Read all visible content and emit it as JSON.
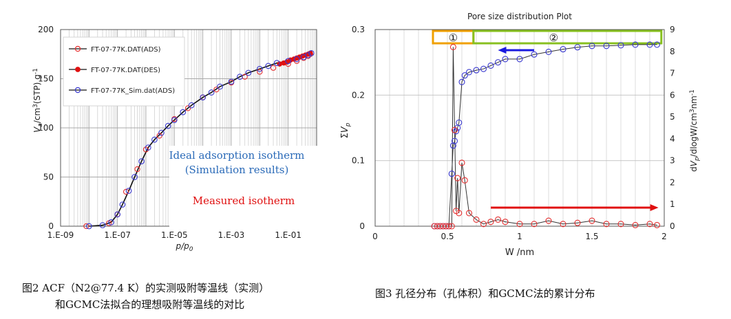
{
  "chart_data": [
    {
      "type": "scatter",
      "title": "",
      "xlabel": "p/p0",
      "ylabel": "Va/cm3(STP) g-1",
      "x_scale": "log",
      "xlim": [
        1e-09,
        1
      ],
      "ylim": [
        0,
        200
      ],
      "xticks": [
        1e-09,
        1e-07,
        1e-05,
        0.001,
        0.1
      ],
      "xtick_labels": [
        "1.E-09",
        "1.E-07",
        "1.E-05",
        "1.E-03",
        "1.E-01"
      ],
      "yticks": [
        0,
        50,
        100,
        150,
        200
      ],
      "ytick_labels": [
        "0",
        "50",
        "100",
        "150",
        "200"
      ],
      "grid": true,
      "legend_position": "top-left",
      "series": [
        {
          "name": "FT-07-77K.DAT(ADS)",
          "marker": "open-circle",
          "color": "#e53030",
          "x": [
            8e-09,
            5e-08,
            1e-07,
            2e-07,
            5e-07,
            1e-06,
            3e-06,
            1e-05,
            3e-05,
            0.0001,
            0.0003,
            0.001,
            0.003,
            0.01,
            0.03,
            0.1,
            0.2,
            0.35,
            0.5,
            0.6
          ],
          "y": [
            0,
            3,
            12,
            35,
            58,
            78,
            92,
            109,
            120,
            131,
            139,
            146,
            152,
            157,
            161,
            165,
            168,
            171,
            173,
            175
          ]
        },
        {
          "name": "FT-07-77K.DAT(DES)",
          "marker": "filled-circle",
          "color": "#e01010",
          "x": [
            0.6,
            0.5,
            0.4,
            0.32,
            0.25,
            0.2,
            0.16,
            0.12,
            0.09,
            0.07,
            0.05
          ],
          "y": [
            176,
            175,
            174,
            173,
            172,
            171,
            170,
            169,
            167,
            166,
            165
          ]
        },
        {
          "name": "FT-07-77K_Sim.dat(ADS)",
          "marker": "open-circle",
          "color": "#3a3ad0",
          "x": [
            1e-08,
            3e-08,
            6e-08,
            1e-07,
            1.5e-07,
            2.5e-07,
            4e-07,
            7e-07,
            1.2e-06,
            2e-06,
            3.5e-06,
            6e-06,
            1e-05,
            2e-05,
            4e-05,
            0.0001,
            0.0002,
            0.0004,
            0.001,
            0.002,
            0.004,
            0.01,
            0.02,
            0.04,
            0.1,
            0.2,
            0.35,
            0.5,
            0.65
          ],
          "y": [
            0,
            1,
            4,
            12,
            22,
            36,
            50,
            66,
            80,
            88,
            95,
            102,
            108,
            116,
            123,
            131,
            136,
            142,
            147,
            152,
            156,
            160,
            163,
            166,
            168,
            170,
            172,
            174,
            176
          ]
        }
      ],
      "annotations": [
        "Ideal adsorption isotherm",
        "(Simulation results)",
        "Measured isotherm"
      ]
    },
    {
      "type": "line",
      "title": "Pore size distribution Plot",
      "xlabel": "W /nm",
      "ylabel": "ΣVp",
      "y2label": "dVp/dlogW/cm3nm-1",
      "xlim": [
        0,
        2
      ],
      "ylim": [
        0,
        0.3
      ],
      "y2lim": [
        0,
        9
      ],
      "xticks": [
        0,
        0.5,
        1,
        1.5,
        2
      ],
      "xtick_labels": [
        "0",
        "0.5",
        "1",
        "1.5",
        "2"
      ],
      "yticks": [
        0,
        0.1,
        0.2,
        0.3
      ],
      "ytick_labels": [
        "0",
        "0.1",
        "0.2",
        "0.3"
      ],
      "y2ticks": [
        0,
        1,
        2,
        3,
        4,
        5,
        6,
        7,
        8,
        9
      ],
      "y2tick_labels": [
        "0",
        "1",
        "2",
        "3",
        "4",
        "5",
        "6",
        "7",
        "8",
        "9"
      ],
      "grid": true,
      "series": [
        {
          "name": "ΣVp (cumulative)",
          "axis": "left",
          "marker": "open-circle",
          "color": "#3a3ad0",
          "x": [
            0.41,
            0.43,
            0.45,
            0.47,
            0.49,
            0.51,
            0.53,
            0.54,
            0.55,
            0.56,
            0.57,
            0.58,
            0.6,
            0.62,
            0.65,
            0.7,
            0.75,
            0.8,
            0.85,
            0.9,
            1.0,
            1.1,
            1.2,
            1.3,
            1.4,
            1.5,
            1.6,
            1.7,
            1.8,
            1.9,
            1.95
          ],
          "y": [
            0,
            0,
            0,
            0,
            0,
            0,
            0.08,
            0.123,
            0.13,
            0.145,
            0.15,
            0.158,
            0.22,
            0.23,
            0.235,
            0.238,
            0.24,
            0.245,
            0.25,
            0.255,
            0.255,
            0.262,
            0.266,
            0.27,
            0.273,
            0.275,
            0.275,
            0.276,
            0.277,
            0.277,
            0.277
          ]
        },
        {
          "name": "dVp/dlogW",
          "axis": "right",
          "marker": "open-circle",
          "color": "#e53030",
          "x": [
            0.41,
            0.43,
            0.45,
            0.47,
            0.49,
            0.51,
            0.53,
            0.54,
            0.55,
            0.56,
            0.57,
            0.58,
            0.6,
            0.62,
            0.65,
            0.7,
            0.75,
            0.8,
            0.85,
            0.9,
            1.0,
            1.1,
            1.2,
            1.3,
            1.4,
            1.5,
            1.6,
            1.7,
            1.8,
            1.9,
            1.95
          ],
          "y": [
            0,
            0,
            0,
            0,
            0,
            0,
            0,
            8.2,
            4.4,
            0.7,
            2.2,
            0.6,
            2.9,
            2.1,
            0.6,
            0.3,
            0.1,
            0.2,
            0.3,
            0.2,
            0.1,
            0.1,
            0.25,
            0.1,
            0.15,
            0.25,
            0.1,
            0.1,
            0.05,
            0.1,
            0.05
          ]
        }
      ],
      "regions": [
        {
          "label": "①",
          "from": 0.4,
          "to": 0.68,
          "color": "#f0a000"
        },
        {
          "label": "②",
          "from": 0.68,
          "to": 1.98,
          "color": "#88c020"
        }
      ],
      "arrows": [
        {
          "direction": "left",
          "from": 1.1,
          "to": 0.85,
          "color": "#1a1ae0"
        },
        {
          "direction": "right",
          "from": 0.8,
          "to": 1.96,
          "color": "#e01010"
        }
      ]
    }
  ],
  "captions": {
    "fig2_line1": "图2 ACF（N2@77.4 K）的实测吸附等温线（实测）",
    "fig2_line2": "和GCMC法拟合的理想吸附等温线的对比",
    "fig3": "图3 孔径分布（孔体积）和GCMC法的累计分布"
  },
  "colors": {
    "sim_blue": "#3a3ad0",
    "measured_red": "#e53030",
    "annotation_blue": "#2a6ab8",
    "annotation_red": "#e01010",
    "region1_orange": "#f0a000",
    "region2_green": "#88c020"
  }
}
